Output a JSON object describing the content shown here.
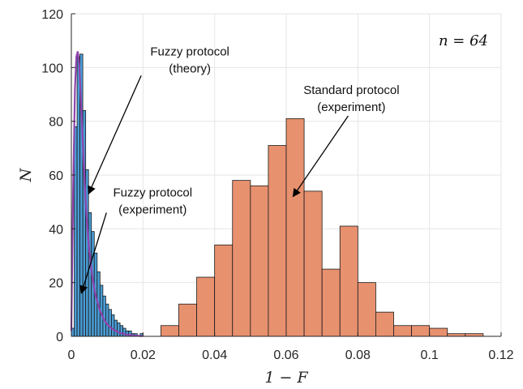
{
  "chart_data": {
    "type": "histogram",
    "xlabel": "1 − F",
    "ylabel": "N",
    "xlim": [
      0,
      0.12
    ],
    "ylim": [
      0,
      120
    ],
    "xticks": [
      "0",
      "0.02",
      "0.04",
      "0.06",
      "0.08",
      "0.1",
      "0.12"
    ],
    "yticks": [
      "0",
      "20",
      "40",
      "60",
      "80",
      "100",
      "120"
    ],
    "grid": true,
    "annotation_n": "n = 64",
    "series": [
      {
        "name": "Fuzzy protocol (experiment)",
        "color": "#4a9cd4",
        "bin_width": 0.0008,
        "bin_start": 0,
        "values": [
          3,
          78,
          104,
          105,
          84,
          62,
          46,
          39,
          31,
          24,
          19,
          15,
          12,
          10,
          8,
          6,
          5,
          4,
          3,
          2,
          2,
          1,
          1,
          0,
          1
        ]
      },
      {
        "name": "Standard protocol (experiment)",
        "color": "#e8916f",
        "bin_width": 0.005,
        "bin_start": 0.025,
        "values": [
          4,
          12,
          22,
          34,
          58,
          56,
          71,
          81,
          54,
          25,
          41,
          20,
          9,
          4,
          4,
          3,
          1,
          1
        ]
      },
      {
        "name": "Fuzzy protocol (theory)",
        "type": "line",
        "color": "#8e44ad",
        "x": [
          0.0,
          0.0005,
          0.001,
          0.0014,
          0.0018,
          0.0022,
          0.0026,
          0.003,
          0.0035,
          0.004,
          0.0045,
          0.005,
          0.0055,
          0.006,
          0.0065,
          0.007,
          0.008,
          0.009,
          0.01,
          0.011,
          0.012,
          0.013,
          0.014,
          0.015,
          0.016,
          0.017,
          0.018,
          0.019,
          0.02
        ],
        "y": [
          2,
          55,
          92,
          104,
          106,
          101,
          90,
          78,
          63,
          50,
          40,
          32,
          26,
          21,
          17,
          14,
          9.5,
          6.5,
          4.5,
          3.2,
          2.3,
          1.6,
          1.1,
          0.8,
          0.55,
          0.4,
          0.25,
          0.15,
          0.1
        ]
      }
    ],
    "annotations": [
      {
        "line1": "Fuzzy protocol",
        "line2": "(theory)",
        "arrow_from": [
          0.0195,
          97
        ],
        "arrow_to": [
          0.0048,
          53
        ]
      },
      {
        "line1": "Fuzzy protocol",
        "line2": "(experiment)",
        "arrow_from": [
          0.0098,
          46
        ],
        "arrow_to": [
          0.0028,
          16
        ]
      },
      {
        "line1": "Standard protocol",
        "line2": "(experiment)",
        "arrow_from": [
          0.0773,
          82
        ],
        "arrow_to": [
          0.0619,
          52
        ]
      }
    ]
  }
}
